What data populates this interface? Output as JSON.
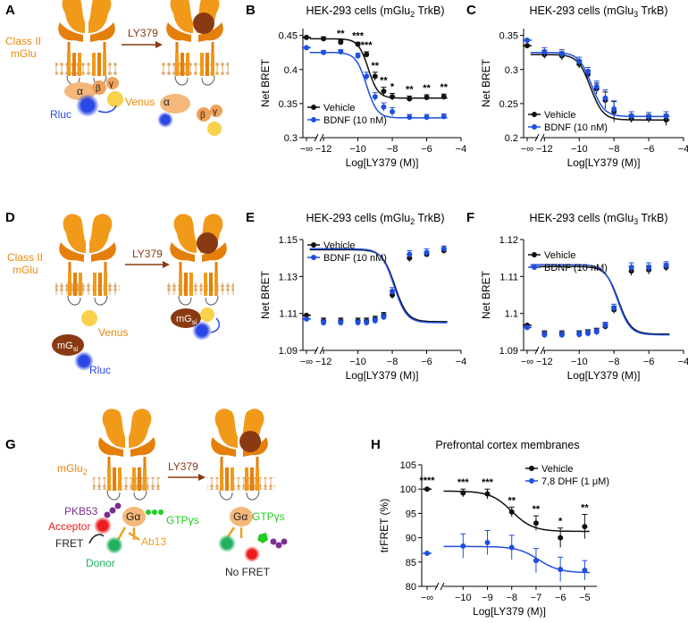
{
  "colors": {
    "vehicle": "#111111",
    "treated": "#1f4fe0",
    "receptor": "#f19a1a",
    "receptor_dark": "#d6700a",
    "ligand": "#8a3a12",
    "membrane": "#e7b37a",
    "alpha": "#f3b87a",
    "beta": "#f0a25a",
    "venus": "#f7d24a",
    "rluc": "#2b48e6",
    "mgsi": "#8a3a12",
    "acceptor": "#ee1c1c",
    "donor": "#20b060",
    "pkb53": "#7a2f8c",
    "gtp": "#22cc22",
    "ab13": "#f0a020"
  },
  "panel_labels": {
    "A": "A",
    "B": "B",
    "C": "C",
    "D": "D",
    "E": "E",
    "F": "F",
    "G": "G",
    "H": "H"
  },
  "diagrams": {
    "A": {
      "receptor": "Class II",
      "receptor2": "mGlu",
      "drug": "LY379",
      "alpha": "α",
      "beta": "β",
      "gamma": "γ",
      "venus": "Venus",
      "rluc": "Rluc"
    },
    "D": {
      "receptor": "Class II",
      "receptor2": "mGlu",
      "drug": "LY379",
      "venus": "Venus",
      "rluc": "Rluc",
      "mgsi": "mG",
      "mgsi_sub": "si"
    },
    "G": {
      "receptor": "mGlu",
      "receptor_sub": "2",
      "drug": "LY379",
      "pkb53": "PKB53",
      "acceptor": "Acceptor",
      "fret": "FRET",
      "donor": "Donor",
      "ga": "Gα",
      "gtp": "GTPγs",
      "ab13": "Ab13",
      "nofret": "No FRET"
    }
  },
  "chart_data": [
    {
      "id": "B",
      "type": "line",
      "title_pre": "HEK-293 cells (mGlu",
      "title_sub": "2",
      "title_post": " TrkB)",
      "xlabel": "Log[LY379 (M)]",
      "ylabel": "Net BRET",
      "xlim": [
        -13.2,
        -4
      ],
      "ylim": [
        0.3,
        0.46
      ],
      "xticks": [
        -12,
        -10,
        -8,
        -6,
        -4
      ],
      "xtick_labels": [
        "−12",
        "−10",
        "−8",
        "−6",
        "−4"
      ],
      "yticks": [
        0.3,
        0.35,
        0.4,
        0.45
      ],
      "ytick_labels": [
        "0.3",
        "0.35",
        "0.4",
        "0.45"
      ],
      "inf_label": "−∞",
      "legend": [
        "Vehicle",
        "BDNF (10 nM)"
      ],
      "x": [
        -12,
        -11,
        -10,
        -9.5,
        -9,
        -8.5,
        -8,
        -7,
        -6,
        -5
      ],
      "series": [
        {
          "name": "Vehicle",
          "baseline": 0.447,
          "values": [
            0.445,
            0.44,
            0.437,
            0.422,
            0.39,
            0.368,
            0.36,
            0.357,
            0.359,
            0.36
          ],
          "err": [
            0.003,
            0.003,
            0.003,
            0.004,
            0.006,
            0.006,
            0.005,
            0.004,
            0.004,
            0.004
          ],
          "fit": {
            "top": 0.445,
            "bottom": 0.358,
            "ec50": -9.4,
            "hill": 1.5
          }
        },
        {
          "name": "BDNF (10 nM)",
          "baseline": 0.432,
          "values": [
            0.425,
            0.426,
            0.42,
            0.39,
            0.36,
            0.345,
            0.338,
            0.33,
            0.33,
            0.331
          ],
          "err": [
            0.003,
            0.003,
            0.004,
            0.006,
            0.006,
            0.006,
            0.006,
            0.004,
            0.004,
            0.004
          ],
          "fit": {
            "top": 0.425,
            "bottom": 0.329,
            "ec50": -9.5,
            "hill": 1.4
          }
        }
      ],
      "annotations": [
        "**",
        "***",
        "***",
        "**",
        "**",
        "*",
        "**",
        "**",
        "**"
      ]
    },
    {
      "id": "C",
      "type": "line",
      "title_pre": "HEK-293 cells (mGlu",
      "title_sub": "3",
      "title_post": " TrkB)",
      "xlabel": "Log[LY379 (M)]",
      "ylabel": "Net BRET",
      "xlim": [
        -13.2,
        -4
      ],
      "ylim": [
        0.2,
        0.36
      ],
      "xticks": [
        -12,
        -10,
        -8,
        -6,
        -4
      ],
      "xtick_labels": [
        "−12",
        "−10",
        "−8",
        "−6",
        "−4"
      ],
      "yticks": [
        0.2,
        0.25,
        0.3,
        0.35
      ],
      "ytick_labels": [
        "0.2",
        "0.25",
        "0.3",
        "0.35"
      ],
      "inf_label": "−∞",
      "legend": [
        "Vehicle",
        "BDNF (10 nM)"
      ],
      "x": [
        -12,
        -11,
        -10,
        -9.5,
        -9,
        -8.5,
        -8,
        -7,
        -6,
        -5
      ],
      "series": [
        {
          "name": "Vehicle",
          "baseline": 0.335,
          "values": [
            0.322,
            0.32,
            0.308,
            0.293,
            0.272,
            0.255,
            0.238,
            0.228,
            0.228,
            0.226
          ],
          "err": [
            0.006,
            0.006,
            0.006,
            0.006,
            0.008,
            0.012,
            0.015,
            0.006,
            0.006,
            0.008
          ],
          "fit": {
            "top": 0.322,
            "bottom": 0.226,
            "ec50": -9.35,
            "hill": 1.2
          }
        },
        {
          "name": "BDNF (10 nM)",
          "baseline": 0.343,
          "values": [
            0.326,
            0.323,
            0.312,
            0.297,
            0.275,
            0.258,
            0.242,
            0.232,
            0.231,
            0.232
          ],
          "err": [
            0.006,
            0.006,
            0.006,
            0.006,
            0.008,
            0.012,
            0.012,
            0.006,
            0.006,
            0.006
          ],
          "fit": {
            "top": 0.325,
            "bottom": 0.231,
            "ec50": -9.3,
            "hill": 1.2
          }
        }
      ],
      "annotations": []
    },
    {
      "id": "E",
      "type": "line",
      "title_pre": "HEK-293 cells (mGlu",
      "title_sub": "2",
      "title_post": " TrkB)",
      "xlabel": "Log[LY379 (M)]",
      "ylabel": "Net BRET",
      "xlim": [
        -13.2,
        -4
      ],
      "ylim": [
        1.09,
        1.15
      ],
      "xticks": [
        -12,
        -10,
        -8,
        -6,
        -4
      ],
      "xtick_labels": [
        "−12",
        "−10",
        "−8",
        "−6",
        "−4"
      ],
      "yticks": [
        1.09,
        1.11,
        1.13,
        1.15
      ],
      "ytick_labels": [
        "1.09",
        "1.11",
        "1.13",
        "1.15"
      ],
      "inf_label": "−∞",
      "legend": [
        "Vehicle",
        "BDNF (10 nM)"
      ],
      "x": [
        -12,
        -11,
        -10,
        -9.5,
        -9,
        -8.5,
        -8,
        -7,
        -6,
        -5
      ],
      "series": [
        {
          "name": "Vehicle",
          "baseline": 1.109,
          "values": [
            1.106,
            1.106,
            1.106,
            1.106,
            1.107,
            1.109,
            1.12,
            1.14,
            1.142,
            1.144
          ],
          "err": [
            0.0015,
            0.0015,
            0.0015,
            0.0015,
            0.0015,
            0.0015,
            0.002,
            0.002,
            0.0015,
            0.0015
          ],
          "fit": {
            "top": 1.1445,
            "bottom": 1.1055,
            "ec50": -7.85,
            "hill": 1.2
          }
        },
        {
          "name": "BDNF (10 nM)",
          "baseline": 1.107,
          "values": [
            1.105,
            1.105,
            1.105,
            1.105,
            1.106,
            1.108,
            1.122,
            1.142,
            1.143,
            1.145
          ],
          "err": [
            0.0015,
            0.0015,
            0.0015,
            0.0015,
            0.0015,
            0.0015,
            0.002,
            0.002,
            0.002,
            0.0015
          ],
          "fit": {
            "top": 1.145,
            "bottom": 1.105,
            "ec50": -7.9,
            "hill": 1.2
          }
        }
      ],
      "annotations": []
    },
    {
      "id": "F",
      "type": "line",
      "title_pre": "HEK-293 cells (mGlu",
      "title_sub": "3",
      "title_post": " TrkB)",
      "xlabel": "Log[LY379 (M)]",
      "ylabel": "Net BRET",
      "xlim": [
        -13.2,
        -4
      ],
      "ylim": [
        1.09,
        1.12
      ],
      "xticks": [
        -12,
        -10,
        -8,
        -6,
        -4
      ],
      "xtick_labels": [
        "−12",
        "−10",
        "−8",
        "−6",
        "−4"
      ],
      "yticks": [
        1.09,
        1.1,
        1.11,
        1.12
      ],
      "ytick_labels": [
        "1.09",
        "1.1",
        "1.11",
        "1.12"
      ],
      "inf_label": "−∞",
      "legend": [
        "Vehicle",
        "BDNF (10 nM)"
      ],
      "x": [
        -12,
        -11,
        -10,
        -9.5,
        -9,
        -8.5,
        -8,
        -7,
        -6,
        -5
      ],
      "series": [
        {
          "name": "Vehicle",
          "baseline": 1.0968,
          "values": [
            1.0945,
            1.0945,
            1.0945,
            1.0948,
            1.0952,
            1.0965,
            1.101,
            1.1115,
            1.1118,
            1.1125
          ],
          "err": [
            0.0008,
            0.0008,
            0.0008,
            0.0008,
            0.0008,
            0.0008,
            0.001,
            0.0012,
            0.0012,
            0.001
          ],
          "fit": {
            "top": 1.1127,
            "bottom": 1.0944,
            "ec50": -7.75,
            "hill": 1.2
          }
        },
        {
          "name": "BDNF (10 nM)",
          "baseline": 1.0962,
          "values": [
            1.0942,
            1.0942,
            1.0943,
            1.0946,
            1.095,
            1.0968,
            1.1015,
            1.1125,
            1.1125,
            1.113
          ],
          "err": [
            0.0008,
            0.0008,
            0.0008,
            0.0008,
            0.0008,
            0.0008,
            0.001,
            0.0012,
            0.0012,
            0.001
          ],
          "fit": {
            "top": 1.1132,
            "bottom": 1.0942,
            "ec50": -7.8,
            "hill": 1.2
          }
        }
      ],
      "annotations": []
    },
    {
      "id": "H",
      "type": "line",
      "title_pre": "Prefrontal cortex membranes",
      "title_sub": "",
      "title_post": "",
      "xlabel": "Log[LY379 (M)]",
      "ylabel": "trFRET (%)",
      "xlim": [
        -11.7,
        -4.5
      ],
      "ylim": [
        80,
        105
      ],
      "xticks": [
        -10,
        -9,
        -8,
        -7,
        -6,
        -5
      ],
      "xtick_labels": [
        "−10",
        "−9",
        "−8",
        "−7",
        "−6",
        "−5"
      ],
      "yticks": [
        80,
        85,
        90,
        95,
        100,
        105
      ],
      "ytick_labels": [
        "80",
        "85",
        "90",
        "95",
        "100",
        "105"
      ],
      "inf_label": "−∞",
      "legend": [
        "Vehicle",
        "7,8 DHF (1 μM)"
      ],
      "x": [
        -10,
        -9,
        -8,
        -7,
        -6,
        -5
      ],
      "series": [
        {
          "name": "Vehicle",
          "baseline": 100,
          "values": [
            99.2,
            99.0,
            95.3,
            93.0,
            90.0,
            92.3
          ],
          "err": [
            0.8,
            1.0,
            1.0,
            1.5,
            2.0,
            2.5
          ],
          "fit": {
            "top": 99.6,
            "bottom": 91.3,
            "ec50": -8.0,
            "hill": 1.0
          }
        },
        {
          "name": "7,8 DHF (1 μM)",
          "baseline": 86.8,
          "values": [
            88.3,
            89.0,
            88.0,
            85.3,
            83.5,
            83.3
          ],
          "err": [
            2.5,
            2.5,
            2.5,
            2.5,
            2.5,
            2.0
          ],
          "fit": {
            "top": 88.2,
            "bottom": 82.8,
            "ec50": -6.9,
            "hill": 1.0
          }
        }
      ],
      "baseline_annotation": "****",
      "annotations": [
        "***",
        "***",
        "**",
        "**",
        "*",
        "**"
      ]
    }
  ]
}
